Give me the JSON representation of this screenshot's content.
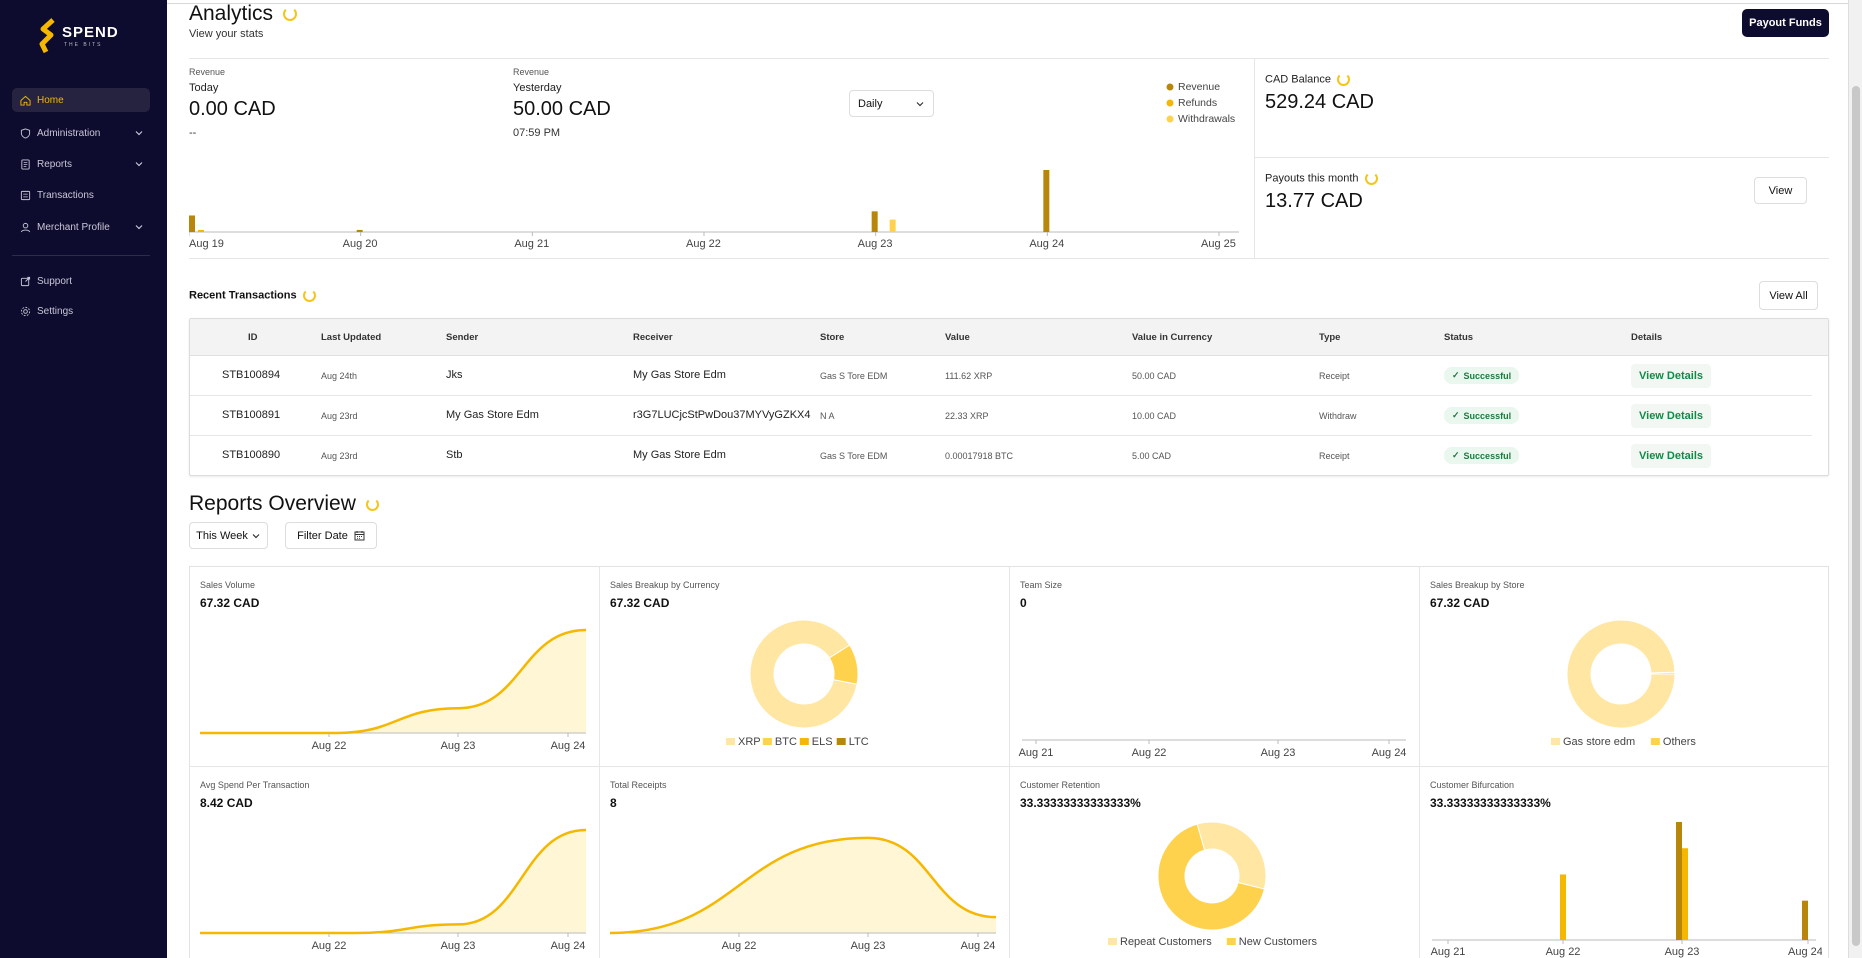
{
  "brand": {
    "word": "SPEND",
    "tag": "THE BITS"
  },
  "sidebar": {
    "items": [
      {
        "label": "Home",
        "icon": "home-icon",
        "active": true
      },
      {
        "label": "Administration",
        "icon": "shield-icon",
        "dropdown": true
      },
      {
        "label": "Reports",
        "icon": "document-icon",
        "dropdown": true
      },
      {
        "label": "Transactions",
        "icon": "list-icon"
      },
      {
        "label": "Merchant Profile",
        "icon": "user-icon",
        "dropdown": true
      },
      {
        "label": "Support",
        "icon": "external-link-icon"
      },
      {
        "label": "Settings",
        "icon": "gear-icon"
      }
    ]
  },
  "header": {
    "title": "Analytics",
    "subtitle": "View your stats",
    "payout_button": "Payout Funds"
  },
  "revenue": {
    "today": {
      "label": "Revenue",
      "period": "Today",
      "value": "0.00 CAD",
      "time": "--"
    },
    "yesterday": {
      "label": "Revenue",
      "period": "Yesterday",
      "value": "50.00 CAD",
      "time": "07:59 PM"
    },
    "range_select": "Daily",
    "legend": [
      "Revenue",
      "Refunds",
      "Withdrawals"
    ]
  },
  "colors": {
    "revenue": "#b8860b",
    "refunds": "#f5b700",
    "withdrawals": "#ffd24d",
    "light": "#ffe6a3",
    "area": "#fff6d6"
  },
  "balance": {
    "label": "CAD Balance",
    "value": "529.24 CAD"
  },
  "payouts": {
    "label": "Payouts this month",
    "value": "13.77 CAD",
    "button": "View"
  },
  "transactions": {
    "title": "Recent Transactions",
    "view_all": "View All",
    "columns": [
      "ID",
      "Last Updated",
      "Sender",
      "Receiver",
      "Store",
      "Value",
      "Value in Currency",
      "Type",
      "Status",
      "Details"
    ],
    "rows": [
      {
        "id": "STB100894",
        "updated": "Aug 24th",
        "sender": "Jks",
        "receiver": "My Gas Store Edm",
        "store": "Gas S Tore EDM",
        "value": "111.62 XRP",
        "currency_value": "50.00 CAD",
        "type": "Receipt",
        "status": "Successful",
        "details": "View Details"
      },
      {
        "id": "STB100891",
        "updated": "Aug 23rd",
        "sender": "My Gas Store Edm",
        "receiver": "r3G7LUCjcStPwDou37MYVyGZKX4",
        "store": "N A",
        "value": "22.33 XRP",
        "currency_value": "10.00 CAD",
        "type": "Withdraw",
        "status": "Successful",
        "details": "View Details"
      },
      {
        "id": "STB100890",
        "updated": "Aug 23rd",
        "sender": "Stb",
        "receiver": "My Gas Store Edm",
        "store": "Gas S Tore EDM",
        "value": "0.00017918 BTC",
        "currency_value": "5.00 CAD",
        "type": "Receipt",
        "status": "Successful",
        "details": "View Details"
      }
    ]
  },
  "reports": {
    "title": "Reports Overview",
    "week_select": "This Week",
    "filter_date": "Filter Date",
    "cards": [
      {
        "title": "Sales Volume",
        "value": "67.32 CAD"
      },
      {
        "title": "Sales Breakup by Currency",
        "value": "67.32 CAD",
        "legend": [
          "XRP",
          "BTC",
          "ELS",
          "LTC"
        ]
      },
      {
        "title": "Team Size",
        "value": "0"
      },
      {
        "title": "Sales Breakup by Store",
        "value": "67.32 CAD",
        "legend": [
          "Gas store edm",
          "Others"
        ]
      },
      {
        "title": "Avg Spend Per Transaction",
        "value": "8.42 CAD"
      },
      {
        "title": "Total Receipts",
        "value": "8"
      },
      {
        "title": "Customer Retention",
        "value": "33.33333333333333%",
        "legend": [
          "Repeat Customers",
          "New Customers"
        ]
      },
      {
        "title": "Customer Bifurcation",
        "value": "33.33333333333333%"
      }
    ]
  },
  "chart_data": [
    {
      "type": "bar",
      "categories": [
        "Aug 19",
        "Aug 20",
        "Aug 21",
        "Aug 22",
        "Aug 23",
        "Aug 24",
        "Aug 25"
      ],
      "series": [
        {
          "name": "Revenue",
          "values": [
            8,
            1,
            0,
            0,
            10,
            30,
            0
          ]
        },
        {
          "name": "Refunds",
          "values": [
            1,
            0,
            0,
            0,
            0,
            0,
            0
          ]
        },
        {
          "name": "Withdrawals",
          "values": [
            0,
            0,
            0,
            0,
            6,
            0,
            0
          ]
        }
      ]
    },
    {
      "type": "area",
      "x": [
        "Aug 22",
        "Aug 23",
        "Aug 24"
      ],
      "values": [
        0,
        12,
        50
      ]
    },
    {
      "type": "pie",
      "labels": [
        "XRP",
        "BTC",
        "ELS",
        "LTC"
      ],
      "values": [
        88,
        12,
        0,
        0
      ]
    },
    {
      "type": "line",
      "x": [
        "Aug 21",
        "Aug 22",
        "Aug 23",
        "Aug 24"
      ],
      "values": [
        0,
        0,
        0,
        0
      ]
    },
    {
      "type": "pie",
      "labels": [
        "Gas store edm",
        "Others"
      ],
      "values": [
        99.5,
        0.5
      ]
    },
    {
      "type": "area",
      "x": [
        "Aug 22",
        "Aug 23",
        "Aug 24"
      ],
      "values": [
        0,
        1,
        12
      ]
    },
    {
      "type": "area",
      "x": [
        "Aug 22",
        "Aug 23",
        "Aug 24"
      ],
      "values": [
        0,
        6,
        1
      ]
    },
    {
      "type": "pie",
      "labels": [
        "Repeat Customers",
        "New Customers"
      ],
      "values": [
        33.33,
        66.67
      ]
    },
    {
      "type": "bar",
      "categories": [
        "Aug 21",
        "Aug 22",
        "Aug 23",
        "Aug 24"
      ],
      "series": [
        {
          "name": "Repeat Customers",
          "values": [
            0,
            0,
            9,
            3
          ]
        },
        {
          "name": "New Customers",
          "values": [
            0,
            5,
            7,
            0
          ]
        }
      ]
    }
  ]
}
